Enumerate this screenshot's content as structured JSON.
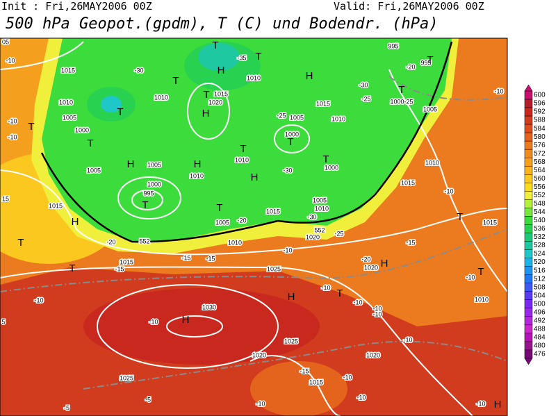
{
  "header": {
    "init": "Init : Fri,26MAY2006 00Z",
    "valid": "Valid: Fri,26MAY2006 00Z",
    "title": "500 hPa Geopot.(gpdm), T (C) und Bodendr. (hPa)"
  },
  "colorbar": {
    "values": [
      600,
      596,
      592,
      588,
      584,
      580,
      576,
      572,
      568,
      564,
      560,
      556,
      552,
      548,
      544,
      540,
      536,
      532,
      528,
      524,
      520,
      516,
      512,
      508,
      504,
      500,
      496,
      492,
      488,
      484,
      480,
      476
    ],
    "colors": [
      "#c8106e",
      "#b41e2b",
      "#c8281e",
      "#d23c1e",
      "#dc4e1e",
      "#e4641e",
      "#ec7a1e",
      "#f08c1e",
      "#f4a01e",
      "#f8b41e",
      "#fac81e",
      "#fadc1e",
      "#f0f03c",
      "#b4f03c",
      "#78e63c",
      "#3cdc3c",
      "#28d250",
      "#1ec878",
      "#1ec8a0",
      "#1ec8c8",
      "#1eb4e6",
      "#1e96f0",
      "#1e78f0",
      "#3c5af0",
      "#5a3cf0",
      "#7828f0",
      "#9628e6",
      "#b428dc",
      "#c828c8",
      "#b414b4",
      "#96148c",
      "#780a78"
    ]
  },
  "map_labels": [
    "1015",
    "1010",
    "1005",
    "1000",
    "1005",
    "1015",
    "H",
    "T",
    "T",
    "T",
    "H",
    "1005",
    "1000",
    "995",
    "T",
    "T",
    "-30",
    "1010",
    "T",
    "H",
    "1020",
    "1015",
    "H",
    "-35",
    "T",
    "T",
    "1010",
    "H",
    "1005",
    "1000",
    "T",
    "T",
    "1000",
    "H",
    "1010",
    "T",
    "H",
    "1010",
    "T",
    "1005",
    "-20",
    "1015",
    "1015",
    "1010",
    "-25",
    "-30",
    "-25",
    "-30",
    "T",
    "1000-25",
    "1005",
    "995",
    "995",
    "T",
    "-20",
    "1010",
    "1015",
    "-10",
    "T",
    "1015",
    "-10",
    "-10",
    "T",
    "-20",
    "552",
    "552",
    "1010",
    "1020",
    "-25",
    "-30",
    "1010",
    "1005",
    "T",
    "1015",
    "-15",
    "-15",
    "-15",
    "1025",
    "-10",
    "-20",
    "1020",
    "H",
    "-15",
    "T",
    "H",
    "-10",
    "-10",
    "-10",
    "-10",
    "1030",
    "H",
    "-10",
    "-10",
    "1025",
    "1020",
    "1020",
    "-10",
    "-15",
    "1015",
    "1025",
    "-10",
    "-10",
    "-10",
    "-5",
    "-5",
    "T",
    "-10",
    "1010",
    "-10",
    "H",
    "05",
    "15",
    "5",
    "-10",
    "-10"
  ]
}
